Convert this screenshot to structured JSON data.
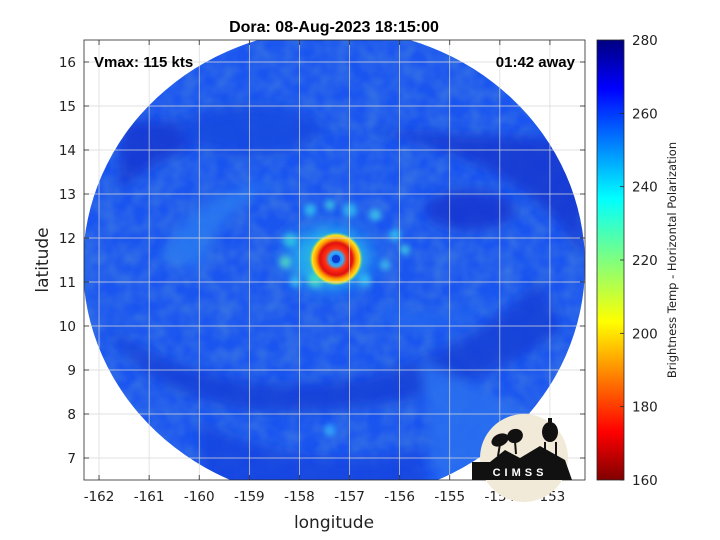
{
  "chart_data": {
    "type": "heatmap",
    "title": "Dora: 08-Aug-2023 18:15:00",
    "xlabel": "longitude",
    "ylabel": "latitude",
    "xlim": [
      -162.3,
      -152.3
    ],
    "ylim": [
      6.5,
      16.5
    ],
    "x_ticks": [
      -162,
      -161,
      -160,
      -159,
      -158,
      -157,
      -156,
      -155,
      -154,
      -153
    ],
    "y_ticks": [
      7,
      8,
      9,
      10,
      11,
      12,
      13,
      14,
      15,
      16
    ],
    "grid": true,
    "annotation_left": "Vmax: 115 kts",
    "annotation_right": "01:42 away",
    "storm_center": {
      "lon": -157.0,
      "lat": 11.5
    },
    "colorbar": {
      "label": "Brightness Temp - Horizontal Polarization",
      "range": [
        160,
        280
      ],
      "ticks": [
        160,
        180,
        200,
        220,
        240,
        260,
        280
      ],
      "colormap": "jet"
    }
  },
  "logo": {
    "text": "CIMSS"
  },
  "colors": {
    "background_field": "#1a55f0",
    "eyewall": "#e0201a",
    "eye": "#0a3ad0"
  }
}
